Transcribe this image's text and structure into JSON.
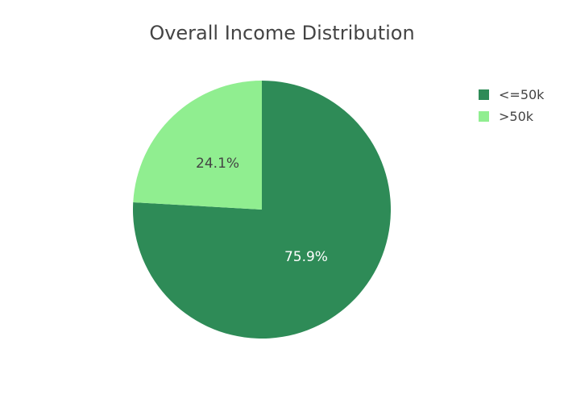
{
  "chart_data": {
    "type": "pie",
    "title": "Overall Income Distribution",
    "labels": [
      "<=50k",
      ">50k"
    ],
    "values": [
      75.9,
      24.1
    ],
    "text_labels": [
      "75.9%",
      "24.1%"
    ],
    "colors": [
      "#2e8b57",
      "#90ee90"
    ],
    "label_colors": [
      "#ffffff",
      "#444444"
    ],
    "legend": {
      "show": true,
      "placement": "right"
    },
    "start_angle": "top",
    "direction": "clockwise"
  }
}
